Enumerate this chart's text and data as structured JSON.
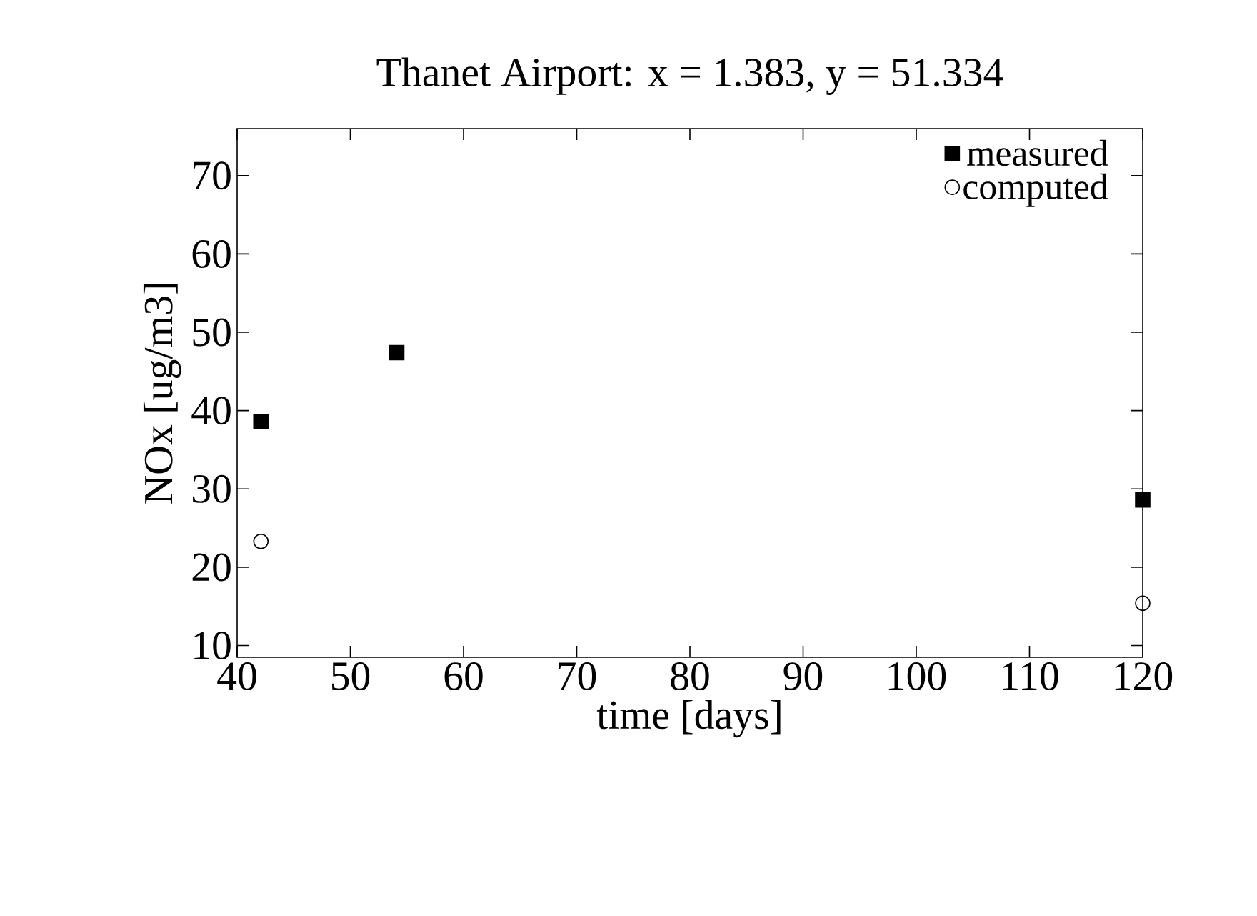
{
  "chart_data": {
    "type": "scatter",
    "title": "Thanet Airport: x = 1.383, y = 51.334",
    "xlabel": "time [days]",
    "ylabel": "NOx [ug/m3]",
    "series": [
      {
        "name": "measured",
        "color": "#000000",
        "marker": "square",
        "x": [
          42.1,
          54.1,
          120
        ],
        "values": [
          38.6,
          47.4,
          28.6
        ]
      },
      {
        "name": "computed",
        "color": "#000000",
        "marker": "circle",
        "x": [
          42.1,
          120
        ],
        "values": [
          23.3,
          15.4
        ]
      }
    ],
    "xlim": [
      40,
      120
    ],
    "ylim": [
      8.5,
      76
    ],
    "xticks": [
      40,
      50,
      60,
      70,
      80,
      90,
      100,
      110,
      120
    ],
    "yticks": [
      10,
      20,
      30,
      40,
      50,
      60,
      70
    ],
    "legend": "top right",
    "grid": false
  }
}
